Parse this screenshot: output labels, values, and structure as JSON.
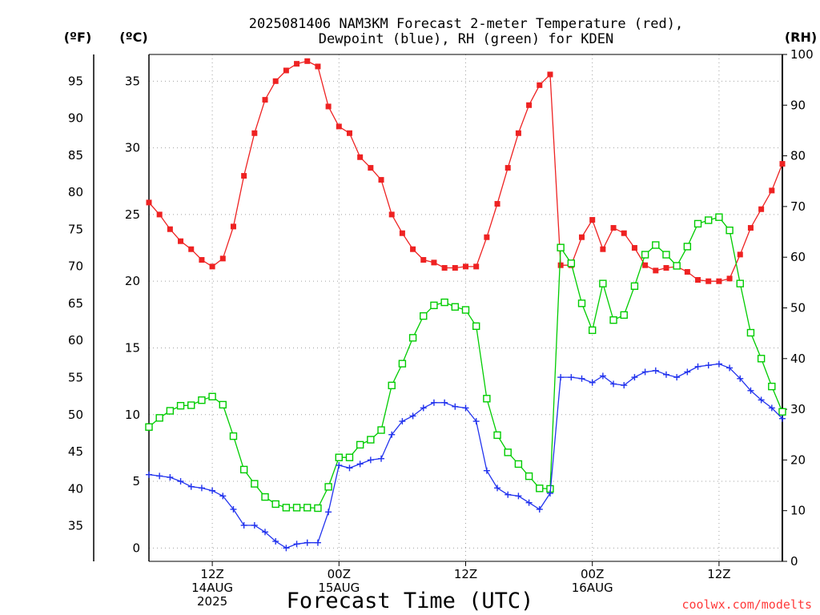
{
  "title": {
    "line1": "2025081406 NAM3KM Forecast 2-meter Temperature (red),",
    "line2": "Dewpoint (blue), RH (green) for KDEN"
  },
  "axis_units": {
    "fahrenheit": "(ºF)",
    "celsius": "(ºC)",
    "rh": "(RH)"
  },
  "x_axis": {
    "title": "Forecast Time (UTC)",
    "ticks": [
      {
        "hour": 12,
        "lines": [
          "12Z",
          "14AUG",
          "2025"
        ]
      },
      {
        "hour": 24,
        "lines": [
          "00Z",
          "15AUG"
        ]
      },
      {
        "hour": 36,
        "lines": [
          "12Z"
        ]
      },
      {
        "hour": 48,
        "lines": [
          "00Z",
          "16AUG"
        ]
      },
      {
        "hour": 60,
        "lines": [
          "12Z"
        ]
      }
    ]
  },
  "credit": "coolwx.com/modelts",
  "colors": {
    "temperature": "#ee2222",
    "dewpoint": "#2233ee",
    "rh": "#00cc00",
    "grid": "#a0a0a0"
  },
  "chart_data": {
    "type": "line",
    "x_label": "Forecast Time (UTC)",
    "x_units": "hours from 2025-08-14 00Z",
    "x_range": [
      6,
      66
    ],
    "y_left_celsius": {
      "label": "(ºC)",
      "range": [
        -1,
        37
      ],
      "ticks": [
        0,
        5,
        10,
        15,
        20,
        25,
        30,
        35
      ]
    },
    "y_left_fahrenheit": {
      "label": "(ºF)",
      "range": [
        30.2,
        98.6
      ],
      "ticks": [
        35,
        40,
        45,
        50,
        55,
        60,
        65,
        70,
        75,
        80,
        85,
        90,
        95
      ]
    },
    "y_right_rh": {
      "label": "(RH)",
      "range": [
        0,
        100
      ],
      "ticks": [
        0,
        10,
        20,
        30,
        40,
        50,
        60,
        70,
        80,
        90,
        100
      ]
    },
    "grid": true,
    "x": [
      6,
      7,
      8,
      9,
      10,
      11,
      12,
      13,
      14,
      15,
      16,
      17,
      18,
      19,
      20,
      21,
      22,
      23,
      24,
      25,
      26,
      27,
      28,
      29,
      30,
      31,
      32,
      33,
      34,
      35,
      36,
      37,
      38,
      39,
      40,
      41,
      42,
      43,
      44,
      45,
      46,
      47,
      48,
      49,
      50,
      51,
      52,
      53,
      54,
      55,
      56,
      57,
      58,
      59,
      60,
      61,
      62,
      63,
      64,
      65,
      66
    ],
    "series": [
      {
        "name": "Temperature",
        "units": "°C",
        "marker": "filled-square",
        "values": [
          25.9,
          25.0,
          23.9,
          23.0,
          22.4,
          21.6,
          21.1,
          21.7,
          24.1,
          27.9,
          31.1,
          33.6,
          35.0,
          35.8,
          36.3,
          36.5,
          36.1,
          33.1,
          31.6,
          31.1,
          29.3,
          28.5,
          27.6,
          25.0,
          23.6,
          22.4,
          21.6,
          21.4,
          21.0,
          21.0,
          21.1,
          21.1,
          23.3,
          25.8,
          28.5,
          31.1,
          33.2,
          34.7,
          35.5,
          21.2,
          21.2,
          23.3,
          24.6,
          22.4,
          24.0,
          23.6,
          22.5,
          21.2,
          20.8,
          21.0,
          21.1,
          20.7,
          20.1,
          20.0,
          20.0,
          20.2,
          22.0,
          24.0,
          25.4,
          26.8,
          28.8
        ]
      },
      {
        "name": "Dewpoint",
        "units": "°C",
        "marker": "plus",
        "values": [
          5.5,
          5.4,
          5.3,
          5.0,
          4.6,
          4.5,
          4.3,
          3.9,
          2.9,
          1.7,
          1.7,
          1.2,
          0.5,
          0.0,
          0.3,
          0.4,
          0.4,
          2.7,
          6.2,
          6.0,
          6.3,
          6.6,
          6.7,
          8.5,
          9.5,
          9.9,
          10.5,
          10.9,
          10.9,
          10.6,
          10.5,
          9.5,
          5.8,
          4.5,
          4.0,
          3.9,
          3.4,
          2.9,
          4.1,
          12.8,
          12.8,
          12.7,
          12.4,
          12.9,
          12.3,
          12.2,
          12.8,
          13.2,
          13.3,
          13.0,
          12.8,
          13.2,
          13.6,
          13.7,
          13.8,
          13.5,
          12.7,
          11.8,
          11.1,
          10.5,
          9.7
        ]
      },
      {
        "name": "RH",
        "units": "%",
        "marker": "open-square",
        "values": [
          26.5,
          28.3,
          29.7,
          30.7,
          30.8,
          31.8,
          32.5,
          30.9,
          24.7,
          18.1,
          15.3,
          12.7,
          11.3,
          10.6,
          10.6,
          10.6,
          10.5,
          14.7,
          20.5,
          20.5,
          23.0,
          24.0,
          25.9,
          34.7,
          39.0,
          44.1,
          48.4,
          50.5,
          51.1,
          50.2,
          49.6,
          46.4,
          32.1,
          24.9,
          21.5,
          19.2,
          16.8,
          14.4,
          14.3,
          61.9,
          58.8,
          50.9,
          45.6,
          54.8,
          47.6,
          48.6,
          54.3,
          60.5,
          62.4,
          60.5,
          58.3,
          62.1,
          66.6,
          67.3,
          67.9,
          65.3,
          54.8,
          45.1,
          40.0,
          34.5,
          29.5
        ]
      }
    ]
  }
}
